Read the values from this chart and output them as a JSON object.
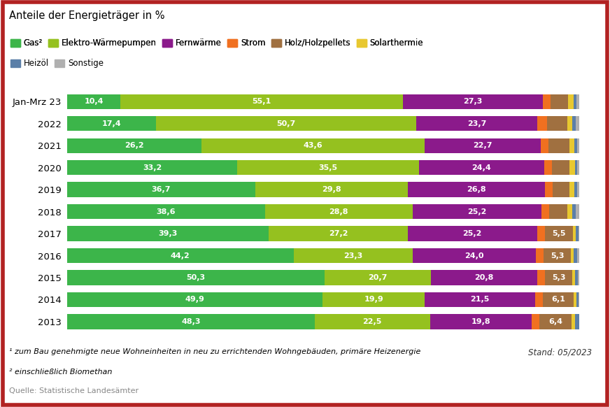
{
  "years": [
    "Jan-Mrz 23",
    "2022",
    "2021",
    "2020",
    "2019",
    "2018",
    "2017",
    "2016",
    "2015",
    "2014",
    "2013"
  ],
  "series": {
    "Gas": [
      10.4,
      17.4,
      26.2,
      33.2,
      36.7,
      38.6,
      39.3,
      44.2,
      50.3,
      49.9,
      48.3
    ],
    "Elektro-Wärmepumpen": [
      55.1,
      50.7,
      43.6,
      35.5,
      29.8,
      28.8,
      27.2,
      23.3,
      20.7,
      19.9,
      22.5
    ],
    "Fernwärme": [
      27.3,
      23.7,
      22.7,
      24.4,
      26.8,
      25.2,
      25.2,
      24.0,
      20.8,
      21.5,
      19.8
    ],
    "Strom": [
      1.5,
      1.8,
      1.5,
      1.5,
      1.5,
      1.5,
      1.5,
      1.5,
      1.5,
      1.5,
      1.5
    ],
    "Holz/Holzpellets": [
      3.5,
      4.0,
      4.0,
      3.5,
      3.2,
      3.5,
      5.5,
      5.3,
      5.3,
      6.1,
      6.4
    ],
    "Solarthermie": [
      1.0,
      1.0,
      1.0,
      1.0,
      1.0,
      1.0,
      0.5,
      0.5,
      0.5,
      0.5,
      0.6
    ],
    "Heizöl": [
      0.6,
      0.6,
      0.6,
      0.5,
      0.5,
      0.6,
      0.6,
      0.8,
      0.6,
      0.4,
      0.8
    ],
    "Sonstige": [
      1.6,
      1.8,
      1.4,
      1.4,
      1.5,
      1.8,
      1.2,
      1.4,
      1.3,
      1.1,
      1.1
    ]
  },
  "show_labels": {
    "Gas": [
      true,
      true,
      true,
      true,
      true,
      true,
      true,
      true,
      true,
      true,
      true
    ],
    "Elektro-Wärmepumpen": [
      true,
      true,
      true,
      true,
      true,
      true,
      true,
      true,
      true,
      true,
      true
    ],
    "Fernwärme": [
      true,
      true,
      true,
      true,
      true,
      true,
      true,
      true,
      true,
      true,
      true
    ],
    "Holz/Holzpellets": [
      false,
      false,
      false,
      false,
      false,
      false,
      true,
      true,
      true,
      true,
      true
    ]
  },
  "label_values": {
    "Gas": [
      10.4,
      17.4,
      26.2,
      33.2,
      36.7,
      38.6,
      39.3,
      44.2,
      50.3,
      49.9,
      48.3
    ],
    "Elektro-Wärmepumpen": [
      55.1,
      50.7,
      43.6,
      35.5,
      29.8,
      28.8,
      27.2,
      23.3,
      20.7,
      19.9,
      22.5
    ],
    "Fernwärme": [
      27.3,
      23.7,
      22.7,
      24.4,
      26.8,
      25.2,
      25.2,
      24.0,
      20.8,
      21.5,
      19.8
    ],
    "Holz/Holzpellets": [
      0,
      0,
      0,
      0,
      0,
      0,
      5.5,
      5.3,
      5.3,
      6.1,
      6.4
    ]
  },
  "colors": {
    "Gas": "#3cb54a",
    "Elektro-Wärmepumpen": "#95c11f",
    "Fernwärme": "#8b1a8b",
    "Strom": "#f07020",
    "Holz/Holzpellets": "#a07040",
    "Solarthermie": "#e8c830",
    "Heizöl": "#5b7fa8",
    "Sonstige": "#b0b0b0"
  },
  "title": "Anteile der Energieträger in %",
  "footnote1": "¹ zum Bau genehmigte neue Wohneinheiten in neu zu errichtenden Wohngebäuden, primäre Heizenergie",
  "footnote2": "² einschließlich Biomethan",
  "source": "Quelle: Statistische Landesämter",
  "stand": "Stand: 05/2023",
  "legend_row1": [
    "Gas²",
    "Elektro-Wärmepumpen",
    "Fernwärme",
    "Strom",
    "Holz/Holzpellets",
    "Solarthermie"
  ],
  "legend_row1_keys": [
    "Gas",
    "Elektro-Wärmepumpen",
    "Fernwärme",
    "Strom",
    "Holz/Holzpellets",
    "Solarthermie"
  ],
  "legend_row2": [
    "Heizöl",
    "Sonstige"
  ],
  "legend_row2_keys": [
    "Heizöl",
    "Sonstige"
  ],
  "bg_color": "#ffffff",
  "border_color": "#b22222"
}
